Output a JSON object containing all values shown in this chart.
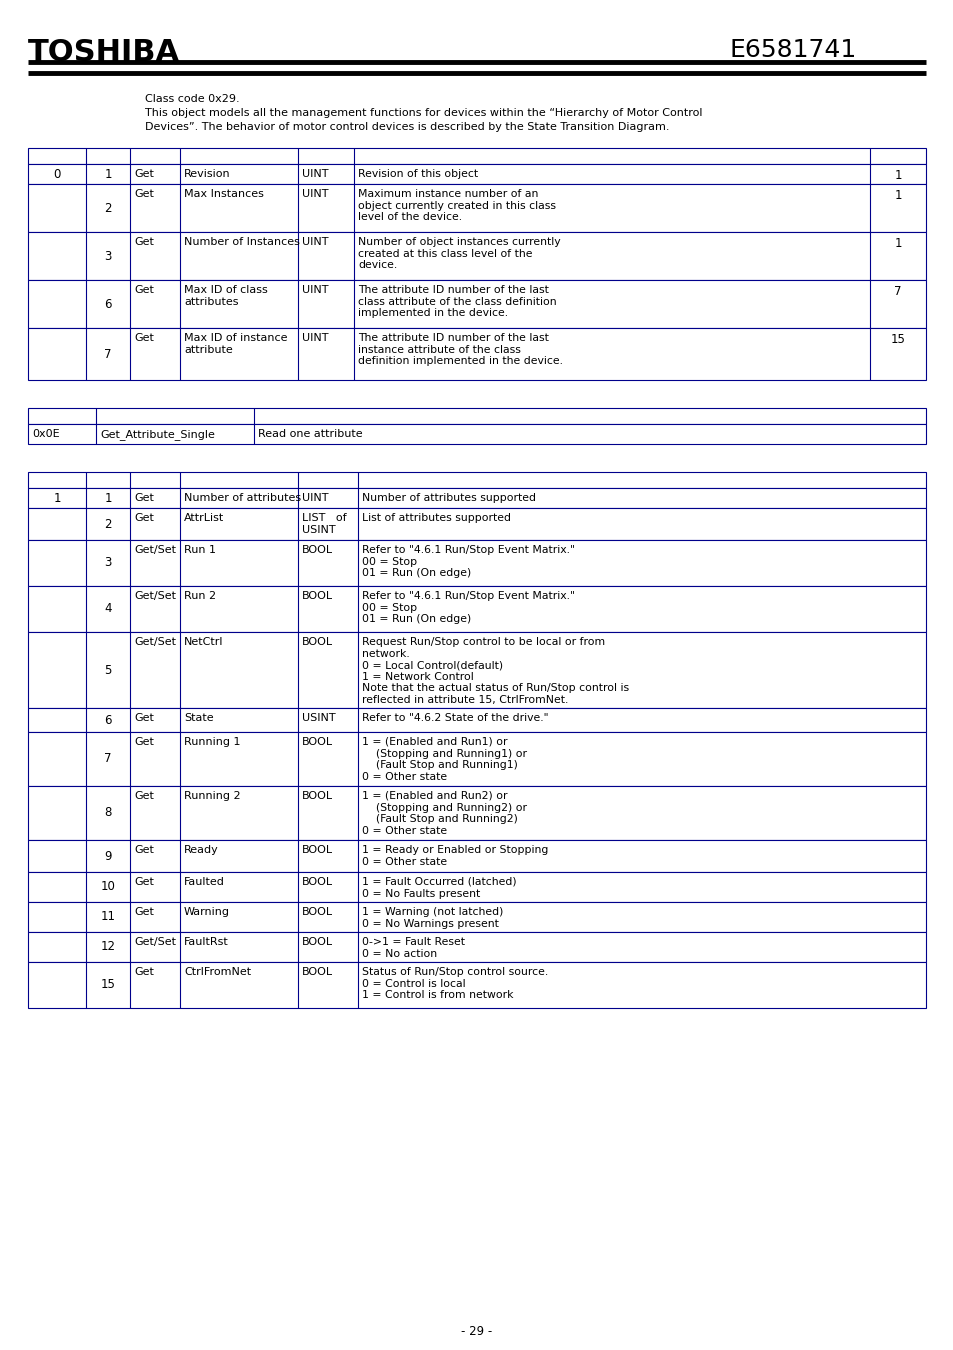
{
  "title_left": "TOSHIBA",
  "title_right": "E6581741",
  "desc_lines": [
    "Class code 0x29.",
    "This object models all the management functions for devices within the “Hierarchy of Motor Control",
    "Devices”. The behavior of motor control devices is described by the State Transition Diagram."
  ],
  "table1_rows": [
    [
      "0",
      "1",
      "Get",
      "Revision",
      "UINT",
      "Revision of this object",
      "1"
    ],
    [
      "",
      "2",
      "Get",
      "Max Instances",
      "UINT",
      "Maximum instance number of an\nobject currently created in this class\nlevel of the device.",
      "1"
    ],
    [
      "",
      "3",
      "Get",
      "Number of Instances",
      "UINT",
      "Number of object instances currently\ncreated at this class level of the\ndevice.",
      "1"
    ],
    [
      "",
      "6",
      "Get",
      "Max ID of class\nattributes",
      "UINT",
      "The attribute ID number of the last\nclass attribute of the class definition\nimplemented in the device.",
      "7"
    ],
    [
      "",
      "7",
      "Get",
      "Max ID of instance\nattribute",
      "UINT",
      "The attribute ID number of the last\ninstance attribute of the class\ndefinition implemented in the device.",
      "15"
    ]
  ],
  "table2_data_row": [
    "0x0E",
    "Get_Attribute_Single",
    "Read one attribute"
  ],
  "table3_rows": [
    [
      "1",
      "1",
      "Get",
      "Number of attributes",
      "UINT",
      "Number of attributes supported"
    ],
    [
      "",
      "2",
      "Get",
      "AttrList",
      "LIST   of\nUSINT",
      "List of attributes supported"
    ],
    [
      "",
      "3",
      "Get/Set",
      "Run 1",
      "BOOL",
      "Refer to \"4.6.1 Run/Stop Event Matrix.\"\n00 = Stop\n01 = Run (On edge)"
    ],
    [
      "",
      "4",
      "Get/Set",
      "Run 2",
      "BOOL",
      "Refer to \"4.6.1 Run/Stop Event Matrix.\"\n00 = Stop\n01 = Run (On edge)"
    ],
    [
      "",
      "5",
      "Get/Set",
      "NetCtrl",
      "BOOL",
      "Request Run/Stop control to be local or from\nnetwork.\n0 = Local Control(default)\n1 = Network Control\nNote that the actual status of Run/Stop control is\nreflected in attribute 15, CtrlFromNet."
    ],
    [
      "",
      "6",
      "Get",
      "State",
      "USINT",
      "Refer to \"4.6.2 State of the drive.\""
    ],
    [
      "",
      "7",
      "Get",
      "Running 1",
      "BOOL",
      "1 = (Enabled and Run1) or\n    (Stopping and Running1) or\n    (Fault Stop and Running1)\n0 = Other state"
    ],
    [
      "",
      "8",
      "Get",
      "Running 2",
      "BOOL",
      "1 = (Enabled and Run2) or\n    (Stopping and Running2) or\n    (Fault Stop and Running2)\n0 = Other state"
    ],
    [
      "",
      "9",
      "Get",
      "Ready",
      "BOOL",
      "1 = Ready or Enabled or Stopping\n0 = Other state"
    ],
    [
      "",
      "10",
      "Get",
      "Faulted",
      "BOOL",
      "1 = Fault Occurred (latched)\n0 = No Faults present"
    ],
    [
      "",
      "11",
      "Get",
      "Warning",
      "BOOL",
      "1 = Warning (not latched)\n0 = No Warnings present"
    ],
    [
      "",
      "12",
      "Get/Set",
      "FaultRst",
      "BOOL",
      "0->1 = Fault Reset\n0 = No action"
    ],
    [
      "",
      "15",
      "Get",
      "CtrlFromNet",
      "BOOL",
      "Status of Run/Stop control source.\n0 = Control is local\n1 = Control is from network"
    ]
  ],
  "page_number": "- 29 -",
  "border_color": "#00008B"
}
